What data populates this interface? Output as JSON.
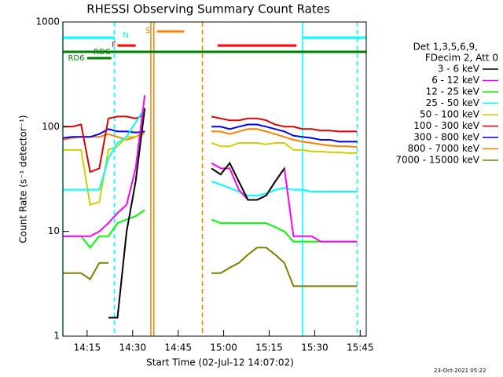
{
  "chart_data": {
    "type": "line",
    "title": "RHESSI Observing Summary Count Rates",
    "x_label": "Start Time (02-Jul-12 14:07:02)",
    "y_label": "Count Rate (s⁻¹ detector⁻¹)",
    "log_y": true,
    "xlim": [
      "14:07",
      "15:47"
    ],
    "xticks": [
      "14:15",
      "14:30",
      "14:45",
      "15:00",
      "15:15",
      "15:30",
      "15:45"
    ],
    "ylim": [
      1,
      1000
    ],
    "yticks": [
      1,
      10,
      100,
      1000
    ],
    "legend_header": [
      "Det 1,3,5,6,9,",
      "FDecim 2, Att 0"
    ],
    "timestamp": "23-Oct-2021 05:22",
    "x": [
      "14:07",
      "14:10",
      "14:13",
      "14:16",
      "14:19",
      "14:22",
      "14:25",
      "14:28",
      "14:31",
      "14:34",
      "14:45",
      "14:56",
      "14:59",
      "15:02",
      "15:05",
      "15:08",
      "15:11",
      "15:14",
      "15:17",
      "15:20",
      "15:23",
      "15:26",
      "15:29",
      "15:32",
      "15:35",
      "15:38",
      "15:41",
      "15:44"
    ],
    "series": [
      {
        "name": "3 - 6 keV",
        "color": "#000000",
        "values": [
          null,
          null,
          null,
          null,
          null,
          1.5,
          1.5,
          10,
          30,
          150,
          null,
          40,
          35,
          45,
          30,
          20,
          20,
          22,
          30,
          40,
          null,
          null,
          null,
          null,
          null,
          null,
          null,
          null
        ]
      },
      {
        "name": "6 - 12 keV",
        "color": "#ff00ff",
        "values": [
          9,
          9,
          9,
          9,
          10,
          12,
          15,
          18,
          40,
          200,
          null,
          45,
          40,
          40,
          25,
          20,
          20,
          22,
          30,
          40,
          9,
          9,
          9,
          8,
          8,
          8,
          8,
          8
        ]
      },
      {
        "name": "12 - 25 keV",
        "color": "#00ff00",
        "values": [
          9,
          9,
          9,
          7,
          9,
          9,
          12,
          13,
          14,
          16,
          null,
          13,
          12,
          12,
          12,
          12,
          12,
          12,
          11,
          10,
          8,
          8,
          8,
          8,
          8,
          8,
          8,
          8
        ]
      },
      {
        "name": "25 - 50 keV",
        "color": "#00ffff",
        "values": [
          25,
          25,
          25,
          25,
          25,
          50,
          70,
          80,
          110,
          150,
          null,
          30,
          28,
          26,
          24,
          22,
          22,
          23,
          25,
          26,
          25,
          25,
          24,
          24,
          24,
          24,
          24,
          24
        ]
      },
      {
        "name": "50 - 100 keV",
        "color": "#d0d000",
        "values": [
          60,
          60,
          60,
          18,
          19,
          60,
          65,
          80,
          80,
          85,
          null,
          70,
          65,
          65,
          70,
          70,
          70,
          68,
          70,
          70,
          60,
          60,
          58,
          58,
          57,
          57,
          56,
          56
        ]
      },
      {
        "name": "100 - 300 keV",
        "color": "#e00000",
        "values": [
          100,
          100,
          105,
          37,
          40,
          120,
          125,
          125,
          120,
          130,
          null,
          125,
          120,
          115,
          115,
          120,
          120,
          115,
          105,
          100,
          100,
          95,
          95,
          92,
          92,
          90,
          90,
          90
        ]
      },
      {
        "name": "300 - 800 keV",
        "color": "#0000ff",
        "values": [
          78,
          80,
          80,
          80,
          85,
          95,
          90,
          90,
          88,
          90,
          null,
          100,
          100,
          95,
          100,
          105,
          105,
          100,
          95,
          90,
          82,
          80,
          78,
          75,
          75,
          72,
          72,
          72
        ]
      },
      {
        "name": "800 - 7000 keV",
        "color": "#ff8000",
        "values": [
          75,
          78,
          80,
          80,
          80,
          85,
          80,
          75,
          80,
          90,
          null,
          90,
          90,
          85,
          90,
          95,
          95,
          90,
          85,
          80,
          75,
          72,
          70,
          68,
          66,
          65,
          65,
          64
        ]
      },
      {
        "name": "7000 - 15000 keV",
        "color": "#808000",
        "values": [
          4,
          4,
          4,
          3.5,
          5,
          5,
          null,
          null,
          null,
          null,
          null,
          4,
          4,
          4.5,
          5,
          6,
          7,
          7,
          6,
          5,
          3,
          3,
          3,
          3,
          3,
          3,
          3,
          3
        ]
      }
    ],
    "flags": [
      {
        "label": "N",
        "color": "#00ffff",
        "spans": [
          [
            "14:07",
            "14:24"
          ],
          [
            "15:26",
            "15:47"
          ]
        ]
      },
      {
        "label": "S",
        "color": "#ff8000",
        "spans": [
          [
            "14:38",
            "14:47"
          ]
        ]
      },
      {
        "label": "F",
        "color": "#ff0000",
        "spans": [
          [
            "14:25",
            "14:31"
          ],
          [
            "14:58",
            "15:24"
          ]
        ]
      },
      {
        "label": "RDC",
        "color": "#008000",
        "spans": [
          [
            "14:07",
            "15:47"
          ]
        ]
      },
      {
        "label": "RD6",
        "color": "#008000",
        "spans": [
          [
            "14:15",
            "14:23"
          ]
        ]
      }
    ],
    "vlines": [
      {
        "x": "14:07",
        "color": "#00ffff",
        "style": "solid"
      },
      {
        "x": "14:24",
        "color": "#00ffff",
        "style": "dashed"
      },
      {
        "x": "14:36",
        "color": "#ff8000",
        "style": "solid"
      },
      {
        "x": "14:37",
        "color": "#ff8000",
        "style": "solid"
      },
      {
        "x": "14:53",
        "color": "#ff8000",
        "style": "dashed"
      },
      {
        "x": "15:26",
        "color": "#00ffff",
        "style": "solid"
      },
      {
        "x": "15:44",
        "color": "#00ffff",
        "style": "dashed"
      }
    ]
  }
}
